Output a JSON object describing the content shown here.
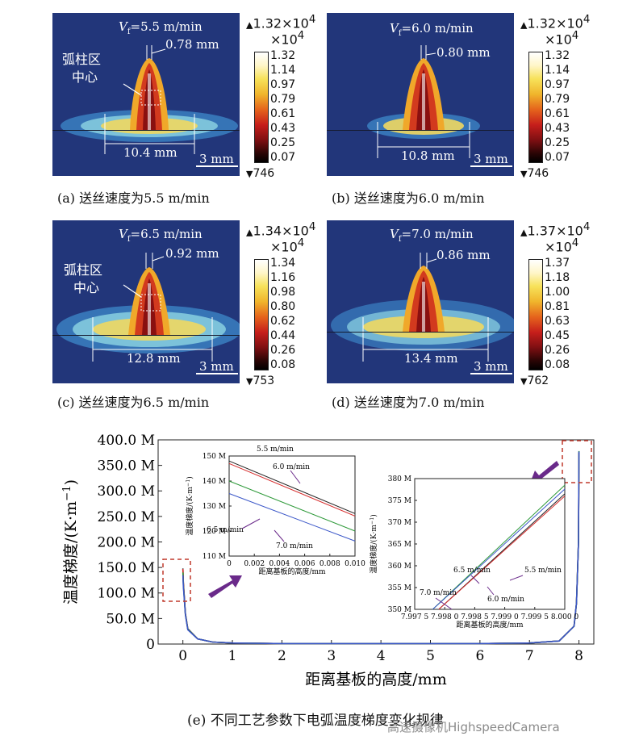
{
  "panels": [
    {
      "vf": "V",
      "vf_sub": "f",
      "vf_val": "=5.5 m/min",
      "gap": "0.78 mm",
      "width": "10.4 mm",
      "scale": "3 mm",
      "caption": "(a) 送丝速度为5.5 m/min",
      "arc_label_1": "弧柱区",
      "arc_label_2": "中心",
      "cb_top": "1.32×10",
      "cb_exp": "4",
      "cb_mult": "×10",
      "cb_mult_exp": "4",
      "cb_ticks": [
        "1.32",
        "1.14",
        "0.97",
        "0.79",
        "0.61",
        "0.43",
        "0.25",
        "0.07"
      ],
      "cb_min": "746"
    },
    {
      "vf": "V",
      "vf_sub": "f",
      "vf_val": "=6.0 m/min",
      "gap": "0.80 mm",
      "width": "10.8 mm",
      "scale": "3 mm",
      "caption": "(b) 送丝速度为6.0 m/min",
      "cb_top": "1.32×10",
      "cb_exp": "4",
      "cb_mult": "×10",
      "cb_mult_exp": "4",
      "cb_ticks": [
        "1.32",
        "1.14",
        "0.97",
        "0.79",
        "0.61",
        "0.43",
        "0.25",
        "0.07"
      ],
      "cb_min": "746"
    },
    {
      "vf": "V",
      "vf_sub": "f",
      "vf_val": "=6.5 m/min",
      "gap": "0.92 mm",
      "width": "12.8 mm",
      "scale": "3 mm",
      "caption": "(c) 送丝速度为6.5 m/min",
      "arc_label_1": "弧柱区",
      "arc_label_2": "中心",
      "cb_top": "1.34×10",
      "cb_exp": "4",
      "cb_mult": "×10",
      "cb_mult_exp": "4",
      "cb_ticks": [
        "1.34",
        "1.16",
        "0.98",
        "0.80",
        "0.62",
        "0.44",
        "0.26",
        "0.08"
      ],
      "cb_min": "753"
    },
    {
      "vf": "V",
      "vf_sub": "f",
      "vf_val": "=7.0 m/min",
      "gap": "0.86 mm",
      "width": "13.4 mm",
      "scale": "3 mm",
      "caption": "(d) 送丝速度为7.0 m/min",
      "cb_top": "1.37×10",
      "cb_exp": "4",
      "cb_mult": "×10",
      "cb_mult_exp": "4",
      "cb_ticks": [
        "1.37",
        "1.18",
        "1.00",
        "0.81",
        "0.63",
        "0.45",
        "0.26",
        "0.08"
      ],
      "cb_min": "762"
    }
  ],
  "chart_data": [
    {
      "type": "line",
      "title": "(e) 不同工艺参数下电弧温度梯度变化规律",
      "xlabel": "距离基板的高度/mm",
      "ylabel": "温度梯度/(K·m",
      "ylabel_sup": "−1",
      "ylabel_end": ")",
      "xlim": [
        -0.5,
        8.3
      ],
      "ylim": [
        0,
        400
      ],
      "xticks": [
        0,
        1,
        2,
        3,
        4,
        5,
        6,
        7,
        8
      ],
      "xtick_labels": [
        "0",
        "1",
        "2",
        "3",
        "4",
        "5",
        "6",
        "7",
        "8"
      ],
      "yticks": [
        0,
        50,
        100,
        150,
        200,
        250,
        300,
        350,
        400
      ],
      "ytick_labels": [
        "0",
        "50.0 M",
        "100.0 M",
        "150.0 M",
        "200.0 M",
        "250.0 M",
        "300.0 M",
        "350.0 M",
        "400.0 M"
      ],
      "series": [
        {
          "name": "5.5 m/min",
          "color": "#222222",
          "x": [
            0,
            0.01,
            0.05,
            0.1,
            0.3,
            0.6,
            1,
            2,
            3,
            4,
            5,
            6,
            7,
            7.6,
            7.9,
            7.95,
            7.99,
            8.0
          ],
          "y": [
            148,
            120,
            60,
            30,
            10,
            4,
            2,
            1,
            1,
            1,
            1,
            1,
            2,
            6,
            35,
            80,
            200,
            375
          ]
        },
        {
          "name": "6.0 m/min",
          "color": "#d62a2a",
          "x": [
            0,
            0.01,
            0.05,
            0.1,
            0.3,
            0.6,
            1,
            2,
            3,
            4,
            5,
            6,
            7,
            7.6,
            7.9,
            7.95,
            7.99,
            8.0
          ],
          "y": [
            147,
            119,
            59,
            29,
            10,
            4,
            2,
            1,
            1,
            1,
            1,
            1,
            2,
            6,
            35,
            80,
            200,
            376
          ]
        },
        {
          "name": "6.5 m/min",
          "color": "#2f9a3a",
          "x": [
            0,
            0.01,
            0.05,
            0.1,
            0.3,
            0.6,
            1,
            2,
            3,
            4,
            5,
            6,
            7,
            7.6,
            7.9,
            7.95,
            7.99,
            8.0
          ],
          "y": [
            140,
            115,
            58,
            29,
            10,
            4,
            2,
            1,
            1,
            1,
            1,
            1,
            2,
            6,
            35,
            80,
            200,
            378
          ]
        },
        {
          "name": "7.0 m/min",
          "color": "#3a56c8",
          "x": [
            0,
            0.01,
            0.05,
            0.1,
            0.3,
            0.6,
            1,
            2,
            3,
            4,
            5,
            6,
            7,
            7.6,
            7.9,
            7.95,
            7.99,
            8.0
          ],
          "y": [
            135,
            112,
            57,
            28,
            10,
            4,
            2,
            1,
            1,
            1,
            1,
            1,
            2,
            6,
            35,
            80,
            200,
            377
          ]
        }
      ]
    },
    {
      "type": "line",
      "title": "",
      "xlabel": "距离基板的高度/mm",
      "ylabel": "温度梯度/(K·m",
      "ylabel_sup": "−1",
      "ylabel_end": ")",
      "xlim": [
        0,
        0.01
      ],
      "ylim": [
        110,
        150
      ],
      "xticks": [
        0,
        0.002,
        0.004,
        0.006,
        0.008,
        0.01
      ],
      "xtick_labels": [
        "0",
        "0.002",
        "0.004",
        "0.006",
        "0.008",
        "0.010"
      ],
      "yticks": [
        110,
        120,
        130,
        140,
        150
      ],
      "ytick_labels": [
        "110 M",
        "120 M",
        "130 M",
        "140 M",
        "150 M"
      ],
      "series": [
        {
          "name": "5.5 m/min",
          "color": "#222222",
          "x": [
            0,
            0.01
          ],
          "y": [
            148,
            127
          ]
        },
        {
          "name": "6.0 m/min",
          "color": "#d62a2a",
          "x": [
            0,
            0.01
          ],
          "y": [
            147,
            126
          ]
        },
        {
          "name": "6.5 m/min",
          "color": "#2f9a3a",
          "x": [
            0,
            0.01
          ],
          "y": [
            140,
            120
          ]
        },
        {
          "name": "7.0 m/min",
          "color": "#3a56c8",
          "x": [
            0,
            0.01
          ],
          "y": [
            135,
            116
          ]
        }
      ],
      "annotations": [
        "5.5 m/min",
        "6.0 m/min",
        "6.5 m/min",
        "7.0 m/min"
      ]
    },
    {
      "type": "line",
      "title": "",
      "xlabel": "距离基板的高度/mm",
      "ylabel": "温度梯度/(K·m",
      "ylabel_sup": "−1",
      "ylabel_end": ")",
      "xlim": [
        7.9975,
        8.0
      ],
      "ylim": [
        350,
        380
      ],
      "xticks": [
        7.9975,
        7.998,
        7.9985,
        7.999,
        7.9995,
        8.0
      ],
      "xtick_labels": [
        "7.997 5",
        "7.998 0",
        "7.998 5",
        "7.999 0",
        "7.999 5",
        "8.000 0"
      ],
      "yticks": [
        350,
        355,
        360,
        365,
        370,
        375,
        380
      ],
      "ytick_labels": [
        "350 M",
        "355 M",
        "360 M",
        "365 M",
        "370 M",
        "375 M",
        "380 M"
      ],
      "series": [
        {
          "name": "5.5 m/min",
          "color": "#222222",
          "x": [
            7.9979,
            8.0
          ],
          "y": [
            350,
            376.5
          ]
        },
        {
          "name": "6.0 m/min",
          "color": "#d62a2a",
          "x": [
            7.9979,
            8.0
          ],
          "y": [
            349.5,
            376
          ]
        },
        {
          "name": "6.5 m/min",
          "color": "#2f9a3a",
          "x": [
            7.9978,
            8.0
          ],
          "y": [
            350,
            378.5
          ]
        },
        {
          "name": "7.0 m/min",
          "color": "#3a56c8",
          "x": [
            7.9978,
            8.0
          ],
          "y": [
            349.3,
            377.6
          ]
        }
      ],
      "annotations": [
        "6.5 m/min",
        "7.0 m/min",
        "5.5 m/min",
        "6.0 m/min"
      ]
    }
  ],
  "watermark": "高速摄像机HighspeedCamera"
}
